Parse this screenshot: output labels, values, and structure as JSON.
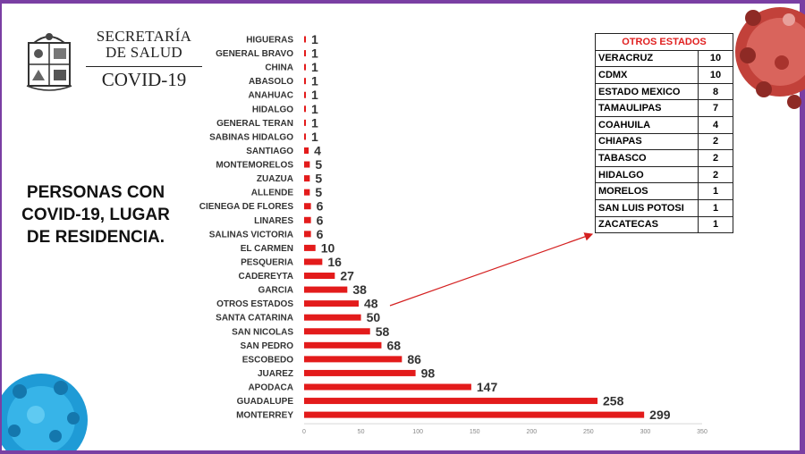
{
  "header": {
    "ministry_name": "SECRETARÍA DE SALUD",
    "program_name": "COVID-19"
  },
  "side_caption": "PERSONAS CON COVID-19, LUGAR DE RESIDENCIA.",
  "colors": {
    "frame": "#7a3fa3",
    "bar": "#e31b1b",
    "table_header": "#e02020"
  },
  "other_states_table": {
    "title": "OTROS ESTADOS",
    "rows": [
      {
        "state": "VERACRUZ",
        "count": "10"
      },
      {
        "state": "CDMX",
        "count": "10"
      },
      {
        "state": "ESTADO MEXICO",
        "count": "8"
      },
      {
        "state": "TAMAULIPAS",
        "count": "7"
      },
      {
        "state": "COAHUILA",
        "count": "4"
      },
      {
        "state": "CHIAPAS",
        "count": "2"
      },
      {
        "state": "TABASCO",
        "count": "2"
      },
      {
        "state": "HIDALGO",
        "count": "2"
      },
      {
        "state": "MORELOS",
        "count": "1"
      },
      {
        "state": "SAN LUIS POTOSI",
        "count": "1"
      },
      {
        "state": "ZACATECAS",
        "count": "1"
      }
    ]
  },
  "chart_data": {
    "type": "bar",
    "orientation": "horizontal",
    "categories": [
      "HIGUERAS",
      "GENERAL BRAVO",
      "CHINA",
      "ABASOLO",
      "ANAHUAC",
      "HIDALGO",
      "GENERAL TERAN",
      "SABINAS HIDALGO",
      "SANTIAGO",
      "MONTEMORELOS",
      "ZUAZUA",
      "ALLENDE",
      "CIENEGA DE FLORES",
      "LINARES",
      "SALINAS VICTORIA",
      "EL CARMEN",
      "PESQUERIA",
      "CADEREYTA",
      "GARCIA",
      "OTROS ESTADOS",
      "SANTA CATARINA",
      "SAN NICOLAS",
      "SAN PEDRO",
      "ESCOBEDO",
      "JUAREZ",
      "APODACA",
      "GUADALUPE",
      "MONTERREY"
    ],
    "values": [
      1,
      1,
      1,
      1,
      1,
      1,
      1,
      1,
      4,
      5,
      5,
      5,
      6,
      6,
      6,
      10,
      16,
      27,
      38,
      48,
      50,
      58,
      68,
      86,
      98,
      147,
      258,
      299
    ],
    "xticks": [
      "0",
      "50",
      "100",
      "150",
      "200",
      "250",
      "300",
      "350"
    ],
    "xlim": [
      0,
      350
    ],
    "bar_color": "#e31b1b",
    "grid": false,
    "title": "",
    "xlabel": "",
    "ylabel": ""
  }
}
